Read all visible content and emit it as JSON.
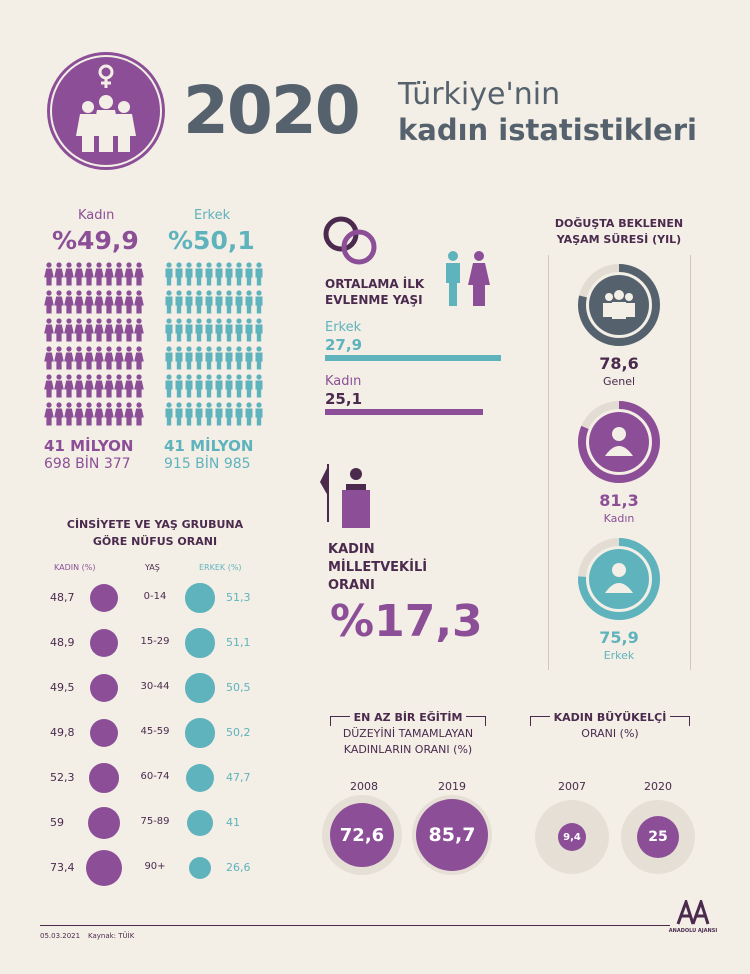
{
  "header": {
    "year": "2020",
    "title_line1": "Türkiye'nin",
    "title_line2": "kadın istatistikleri"
  },
  "gender_ratio": {
    "female_label": "Kadın",
    "female_pct": "%49,9",
    "male_label": "Erkek",
    "male_pct": "%50,1",
    "female_count_line1": "41 MİLYON",
    "female_count_line2": "698 BİN 377",
    "male_count_line1": "41 MİLYON",
    "male_count_line2": "915 BİN 985"
  },
  "age_groups": {
    "title_line1": "CİNSİYETE VE YAŞ GRUBUNA",
    "title_line2": "GÖRE NÜFUS ORANI",
    "col_female": "KADIN (%)",
    "col_age": "YAŞ",
    "col_male": "ERKEK (%)",
    "rows": [
      {
        "age": "0-14",
        "female": "48,7",
        "male": "51,3",
        "female_value": 48.7,
        "male_value": 51.3
      },
      {
        "age": "15-29",
        "female": "48,9",
        "male": "51,1",
        "female_value": 48.9,
        "male_value": 51.1
      },
      {
        "age": "30-44",
        "female": "49,5",
        "male": "50,5",
        "female_value": 49.5,
        "male_value": 50.5
      },
      {
        "age": "45-59",
        "female": "49,8",
        "male": "50,2",
        "female_value": 49.8,
        "male_value": 50.2
      },
      {
        "age": "60-74",
        "female": "52,3",
        "male": "47,7",
        "female_value": 52.3,
        "male_value": 47.7
      },
      {
        "age": "75-89",
        "female": "59",
        "male": "41",
        "female_value": 59,
        "male_value": 41
      },
      {
        "age": "90+",
        "female": "73,4",
        "male": "26,6",
        "female_value": 73.4,
        "male_value": 26.6
      }
    ]
  },
  "marriage": {
    "title_line1": "ORTALAMA İLK",
    "title_line2": "EVLENME YAŞI",
    "male_label": "Erkek",
    "male_value": "27,9",
    "female_label": "Kadın",
    "female_value": "25,1"
  },
  "parliament": {
    "title_line1": "KADIN",
    "title_line2": "MİLLETVEKİLİ",
    "title_line3": "ORANI",
    "value": "%17,3"
  },
  "life_expectancy": {
    "title_line1": "DOĞUŞTA BEKLENEN",
    "title_line2": "YAŞAM SÜRESİ (YIL)",
    "items": [
      {
        "value": "78,6",
        "label": "Genel",
        "color": "#55626d"
      },
      {
        "value": "81,3",
        "label": "Kadın",
        "color": "#8c4f97"
      },
      {
        "value": "75,9",
        "label": "Erkek",
        "color": "#5fb3bd"
      }
    ]
  },
  "education": {
    "title_line1": "EN AZ BİR EĞİTİM",
    "title_line2": "DÜZEYİNİ TAMAMLAYAN",
    "title_line3": "KADINLARIN ORANI (%)",
    "years": [
      "2008",
      "2019"
    ],
    "values": [
      "72,6",
      "85,7"
    ]
  },
  "ambassador": {
    "title_line1": "KADIN BÜYÜKELÇİ",
    "title_line2": "ORANI (%)",
    "years": [
      "2007",
      "2020"
    ],
    "values": [
      "9,4",
      "25"
    ]
  },
  "footer": {
    "date": "05.03.2021",
    "source": "Kaynak: TÜİK",
    "logo_text": "ANADOLU AJANSI"
  },
  "colors": {
    "purple": "#8c4f97",
    "teal": "#5fb3bd",
    "slate": "#55626d",
    "background": "#f3efe6"
  }
}
